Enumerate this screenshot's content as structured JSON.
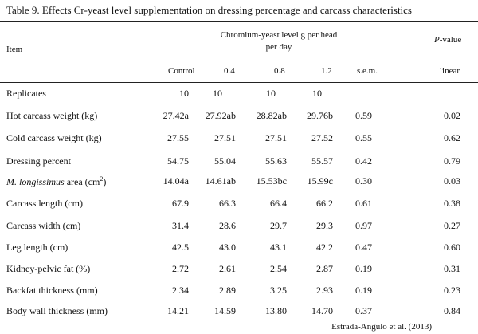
{
  "caption": "Table 9. Effects Cr-yeast level supplementation on dressing percentage and carcass characteristics",
  "header": {
    "item": "Item",
    "group_line1": "Chromium-yeast level g per head",
    "group_line2": "per day",
    "pvalue_p": "P",
    "pvalue_rest": "-value",
    "columns": [
      "Control",
      "0.4",
      "0.8",
      "1.2",
      "s.e.m.",
      "linear"
    ]
  },
  "replicates": {
    "label": "Replicates",
    "values": [
      "10",
      "10",
      "10",
      "10"
    ]
  },
  "rows": [
    {
      "label": "Hot carcass weight (kg)",
      "values": [
        "27.42a",
        "27.92ab",
        "28.82ab",
        "29.76b",
        "0.59",
        "0.02"
      ]
    },
    {
      "label": "Cold carcass weight (kg)",
      "values": [
        "27.55",
        "27.51",
        "27.51",
        "27.52",
        "0.55",
        "0.62"
      ]
    },
    {
      "label": "Dressing percent",
      "values": [
        "54.75",
        "55.04",
        "55.63",
        "55.57",
        "0.42",
        "0.79"
      ]
    },
    {
      "label_italic": "M. longissimus",
      "label_rest": " area (cm",
      "label_sup": "2",
      "label_end": ")",
      "values": [
        "14.04a",
        "14.61ab",
        "15.53bc",
        "15.99c",
        "0.30",
        "0.03"
      ]
    },
    {
      "label": "Carcass length (cm)",
      "values": [
        "67.9",
        "66.3",
        "66.4",
        "66.2",
        "0.61",
        "0.38"
      ]
    },
    {
      "label": "Carcass width (cm)",
      "values": [
        "31.4",
        "28.6",
        "29.7",
        "29.3",
        "0.97",
        "0.27"
      ]
    },
    {
      "label": "Leg length (cm)",
      "values": [
        "42.5",
        "43.0",
        "43.1",
        "42.2",
        "0.47",
        "0.60"
      ]
    },
    {
      "label": "Kidney-pelvic fat (%)",
      "values": [
        "2.72",
        "2.61",
        "2.54",
        "2.87",
        "0.19",
        "0.31"
      ]
    },
    {
      "label": "Backfat thickness  (mm)",
      "values": [
        "2.34",
        "2.89",
        "3.25",
        "2.93",
        "0.19",
        "0.23"
      ]
    },
    {
      "label": "Body wall thickness (mm)",
      "values": [
        "14.21",
        "14.59",
        "13.80",
        "14.70",
        "0.37",
        "0.84"
      ]
    }
  ],
  "source": "Estrada-Angulo et al. (2013)"
}
